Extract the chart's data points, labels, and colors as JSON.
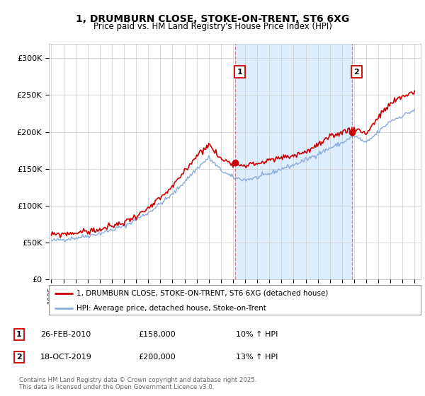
{
  "title": "1, DRUMBURN CLOSE, STOKE-ON-TRENT, ST6 6XG",
  "subtitle": "Price paid vs. HM Land Registry's House Price Index (HPI)",
  "ylabel_ticks": [
    "£0",
    "£50K",
    "£100K",
    "£150K",
    "£200K",
    "£250K",
    "£300K"
  ],
  "ytick_vals": [
    0,
    50000,
    100000,
    150000,
    200000,
    250000,
    300000
  ],
  "ylim": [
    0,
    320000
  ],
  "legend_line1": "1, DRUMBURN CLOSE, STOKE-ON-TRENT, ST6 6XG (detached house)",
  "legend_line2": "HPI: Average price, detached house, Stoke-on-Trent",
  "line1_color": "#cc0000",
  "line2_color": "#88aadd",
  "shade_color": "#ddeeff",
  "marker1_date_x": 2010.15,
  "marker1_y": 158000,
  "marker2_date_x": 2019.8,
  "marker2_y": 200000,
  "grid_color": "#cccccc",
  "bg_color": "#ffffff",
  "vline1_x": 2010.15,
  "vline2_x": 2019.8,
  "xlim_start": 1994.8,
  "xlim_end": 2025.5,
  "footnote3": "Contains HM Land Registry data © Crown copyright and database right 2025.",
  "footnote4": "This data is licensed under the Open Government Licence v3.0."
}
